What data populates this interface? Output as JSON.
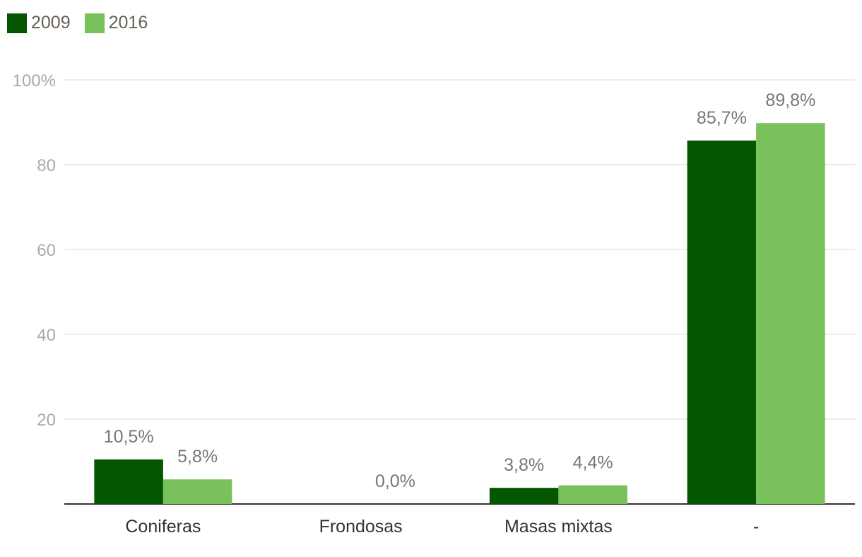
{
  "chart_data": {
    "type": "bar",
    "title": "",
    "xlabel": "",
    "ylabel": "",
    "categories": [
      "Coniferas",
      "Frondosas",
      "Masas mixtas",
      "-"
    ],
    "series": [
      {
        "name": "2009",
        "color": "#045600",
        "values": [
          10.5,
          null,
          3.8,
          85.7
        ],
        "labels": [
          "10,5%",
          "",
          "3,8%",
          "85,7%"
        ]
      },
      {
        "name": "2016",
        "color": "#79c15a",
        "values": [
          5.8,
          0.0,
          4.4,
          89.8
        ],
        "labels": [
          "5,8%",
          "0,0%",
          "4,4%",
          "89,8%"
        ]
      }
    ],
    "ylim": [
      0,
      100
    ],
    "yticks": [
      20,
      40,
      60,
      80,
      100
    ],
    "ytick_labels": [
      "20",
      "40",
      "60",
      "80",
      "100%"
    ],
    "grid": true,
    "legend_position": "top-left",
    "colors": {
      "grid": "#e6e6e6",
      "axis": "#333333",
      "tick_text": "#aaaaaa",
      "category_text": "#333333",
      "data_label_text": "#777777",
      "legend_text": "#665f55"
    }
  }
}
